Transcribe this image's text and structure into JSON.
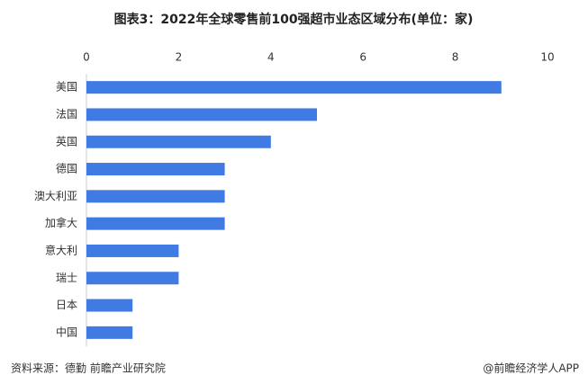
{
  "chart_data": {
    "type": "bar",
    "orientation": "horizontal",
    "title": "图表3：2022年全球零售前100强超市业态区域分布(单位：家)",
    "categories": [
      "美国",
      "法国",
      "英国",
      "德国",
      "澳大利亚",
      "加拿大",
      "意大利",
      "瑞士",
      "日本",
      "中国"
    ],
    "values": [
      9,
      5,
      4,
      3,
      3,
      3,
      2,
      2,
      1,
      1
    ],
    "color": "#3f7be3",
    "xlim": [
      0,
      10
    ],
    "xticks": [
      0,
      2,
      4,
      6,
      8,
      10
    ],
    "grid": false
  },
  "footer": {
    "source": "资料来源：德勤 前瞻产业研究院",
    "credit": "@前瞻经济学人APP"
  }
}
